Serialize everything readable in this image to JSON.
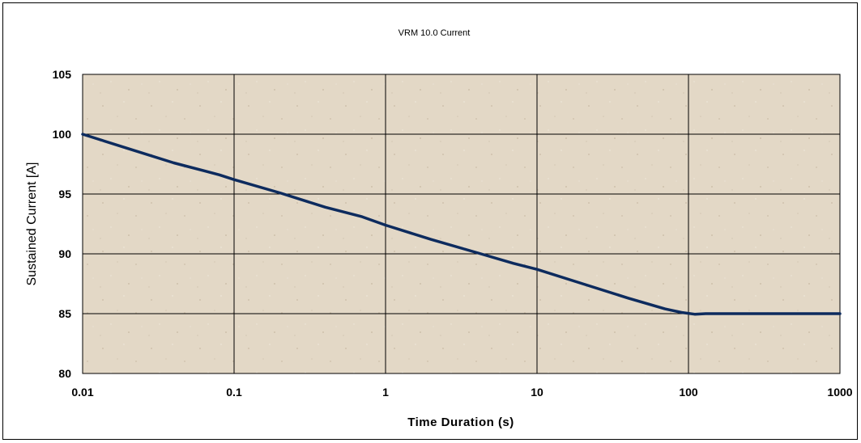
{
  "chart_data": {
    "type": "line",
    "title": "VRM 10.0 Current",
    "xlabel": "Time Duration (s)",
    "ylabel": "Sustained Current [A]",
    "xscale": "log",
    "xlim": [
      0.01,
      1000
    ],
    "ylim": [
      80,
      105
    ],
    "x_ticks": [
      "0.01",
      "0.1",
      "1",
      "10",
      "100",
      "1000"
    ],
    "y_ticks": [
      "80",
      "85",
      "90",
      "95",
      "100",
      "105"
    ],
    "grid": true,
    "legend": "none",
    "background": "#e3d8c6",
    "series": [
      {
        "color": "#0d2b5e",
        "x": [
          0.01,
          0.02,
          0.04,
          0.08,
          0.1,
          0.2,
          0.4,
          0.7,
          1,
          2,
          4,
          7,
          10,
          20,
          40,
          70,
          90,
          110,
          130,
          200,
          500,
          1000
        ],
        "y": [
          100,
          98.8,
          97.6,
          96.6,
          96.2,
          95.1,
          93.9,
          93.1,
          92.4,
          91.2,
          90.1,
          89.2,
          88.7,
          87.5,
          86.3,
          85.4,
          85.1,
          84.95,
          85,
          85,
          85,
          85
        ]
      }
    ]
  }
}
